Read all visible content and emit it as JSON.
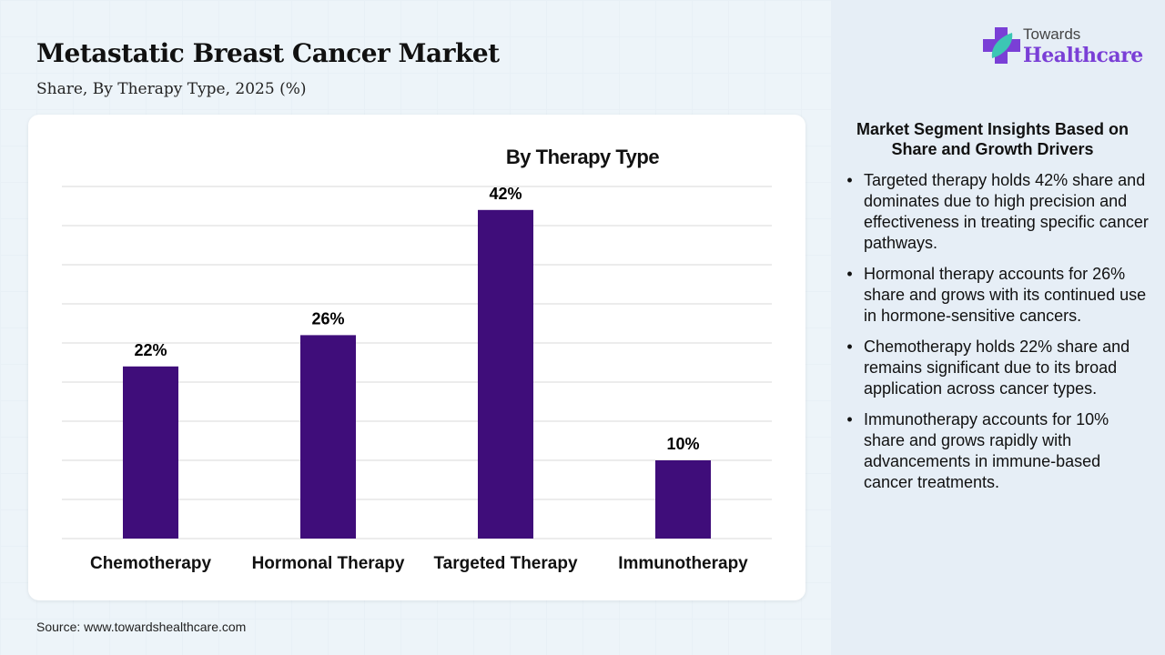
{
  "header": {
    "title": "Metastatic Breast Cancer Market",
    "subtitle": "Share, By Therapy Type, 2025 (%)"
  },
  "logo": {
    "line1": "Towards",
    "line2": "Healthcare"
  },
  "source": "Source: www.towardshealthcare.com",
  "chart_data": {
    "type": "bar",
    "title": "By Therapy Type",
    "categories": [
      "Chemotherapy",
      "Hormonal Therapy",
      "Targeted Therapy",
      "Immunotherapy"
    ],
    "values": [
      22,
      26,
      42,
      10
    ],
    "data_labels": [
      "22%",
      "26%",
      "42%",
      "10%"
    ],
    "ylim": [
      0,
      45
    ],
    "grid_step": 5,
    "grid": true,
    "xlabel": "",
    "ylabel": "",
    "bar_color": "#3f0d7a"
  },
  "insights": {
    "heading": "Market Segment Insights Based on Share and Growth Drivers",
    "items": [
      "Targeted therapy holds 42% share and dominates due to high precision and effectiveness in treating specific cancer pathways.",
      "Hormonal therapy accounts for 26% share and grows with its continued use in hormone-sensitive cancers.",
      "Chemotherapy holds 22% share and remains significant due to its broad application across cancer types.",
      "Immunotherapy accounts for 10% share and grows rapidly with advancements in immune-based cancer treatments."
    ]
  }
}
